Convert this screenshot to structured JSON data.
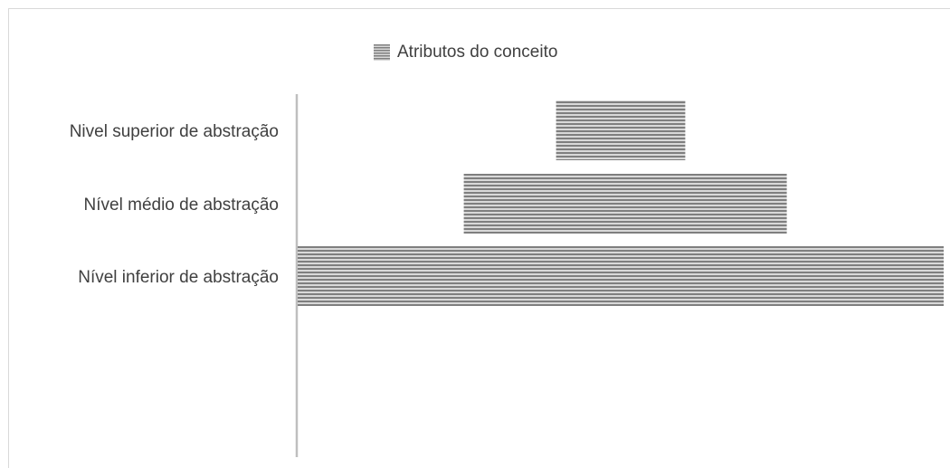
{
  "chart_data": {
    "type": "bar",
    "orientation": "horizontal",
    "stacked": true,
    "categories": [
      "Nivel superior de abstração",
      "Nível médio de abstração",
      "Nível inferior de abstração"
    ],
    "series": [
      {
        "name": "",
        "values": [
          2.8,
          1.8,
          0
        ],
        "hidden": true
      },
      {
        "name": "Atributos do conceito",
        "values": [
          1.4,
          3.5,
          7
        ]
      }
    ],
    "xlim": [
      0,
      7
    ],
    "title": "",
    "xlabel": "",
    "ylabel": "",
    "grid": false,
    "legend_position": "top",
    "colors": {
      "stripe_dark": "#7f7f7f",
      "stripe_light": "#d9d9d9",
      "axis": "#bfbfbf",
      "text": "#404040"
    }
  }
}
